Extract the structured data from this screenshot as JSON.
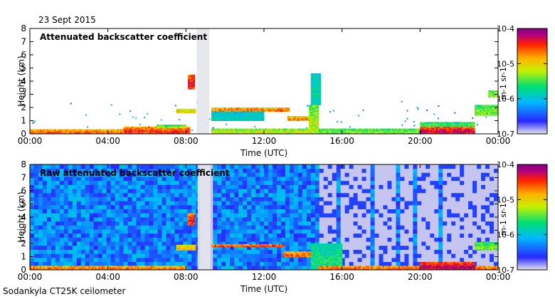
{
  "date_label": "23 Sept 2015",
  "footer_label": "Sodankyla CT25K ceilometer",
  "chart_data": [
    {
      "type": "heatmap",
      "title": "Attenuated backscatter coefficient",
      "xlabel": "Time (UTC)",
      "ylabel": "Height (km)",
      "xlim": [
        0,
        24
      ],
      "ylim": [
        0,
        8
      ],
      "xticks": [
        "00:00",
        "04:00",
        "08:00",
        "12:00",
        "16:00",
        "20:00",
        "00:00"
      ],
      "yticks": [
        "0",
        "1",
        "2",
        "3",
        "4",
        "5",
        "6",
        "7",
        "8"
      ],
      "colorbar": {
        "label": "m-1 sr-1",
        "ticks": [
          "10-7",
          "10-6",
          "10-5",
          "10-4"
        ],
        "range": [
          -7,
          -4
        ]
      },
      "background_noise": 0.03,
      "layers": [
        {
          "t0": 0.0,
          "t1": 4.8,
          "h0": 0.0,
          "h1": 0.35,
          "val": 0.8
        },
        {
          "t0": 4.8,
          "t1": 8.2,
          "h0": 0.0,
          "h1": 0.55,
          "val": 0.85
        },
        {
          "t0": 6.5,
          "t1": 8.0,
          "h0": 0.45,
          "h1": 0.7,
          "val": 0.55
        },
        {
          "t0": 7.5,
          "t1": 8.5,
          "h0": 1.6,
          "h1": 1.9,
          "val": 0.7
        },
        {
          "t0": 8.1,
          "t1": 8.45,
          "h0": 3.4,
          "h1": 4.5,
          "val": 0.9
        },
        {
          "t0": 9.3,
          "t1": 13.3,
          "h0": 1.7,
          "h1": 2.0,
          "val": 0.8
        },
        {
          "t0": 9.3,
          "t1": 12.0,
          "h0": 1.0,
          "h1": 1.7,
          "val": 0.38
        },
        {
          "t0": 13.2,
          "t1": 14.4,
          "h0": 1.0,
          "h1": 1.35,
          "val": 0.78
        },
        {
          "t0": 14.3,
          "t1": 14.8,
          "h0": 0.0,
          "h1": 2.2,
          "val": 0.6
        },
        {
          "t0": 14.4,
          "t1": 14.9,
          "h0": 2.2,
          "h1": 4.6,
          "val": 0.4
        },
        {
          "t0": 9.3,
          "t1": 14.4,
          "h0": 0.0,
          "h1": 0.4,
          "val": 0.62
        },
        {
          "t0": 14.8,
          "t1": 20.0,
          "h0": 0.0,
          "h1": 0.4,
          "val": 0.55
        },
        {
          "t0": 20.0,
          "t1": 22.8,
          "h0": 0.0,
          "h1": 0.55,
          "val": 0.92
        },
        {
          "t0": 20.0,
          "t1": 22.8,
          "h0": 0.55,
          "h1": 0.9,
          "val": 0.5
        },
        {
          "t0": 22.8,
          "t1": 24.0,
          "h0": 1.4,
          "h1": 2.2,
          "val": 0.55
        },
        {
          "t0": 23.5,
          "t1": 24.0,
          "h0": 2.8,
          "h1": 3.3,
          "val": 0.55
        }
      ],
      "gaps": [
        {
          "t0": 8.55,
          "t1": 9.2
        }
      ]
    },
    {
      "type": "heatmap",
      "title": "Raw attenuated backscatter coefficient",
      "xlabel": "Time (UTC)",
      "ylabel": "Height (km)",
      "xlim": [
        0,
        24
      ],
      "ylim": [
        0,
        8
      ],
      "xticks": [
        "00:00",
        "04:00",
        "08:00",
        "12:00",
        "16:00",
        "20:00",
        "00:00"
      ],
      "yticks": [
        "0",
        "1",
        "2",
        "3",
        "4",
        "5",
        "6",
        "7",
        "8"
      ],
      "colorbar": {
        "label": "m-1 sr-1",
        "ticks": [
          "10-7",
          "10-6",
          "10-5",
          "10-4"
        ],
        "range": [
          -7,
          -4
        ]
      },
      "background_noise": 0.75,
      "layers": [
        {
          "t0": 0.0,
          "t1": 8.0,
          "h0": 0.0,
          "h1": 0.3,
          "val": 0.8
        },
        {
          "t0": 8.1,
          "t1": 8.45,
          "h0": 3.4,
          "h1": 4.3,
          "val": 0.88
        },
        {
          "t0": 7.5,
          "t1": 8.5,
          "h0": 1.5,
          "h1": 1.9,
          "val": 0.7
        },
        {
          "t0": 9.3,
          "t1": 13.0,
          "h0": 1.75,
          "h1": 1.95,
          "val": 0.85
        },
        {
          "t0": 13.0,
          "t1": 14.4,
          "h0": 1.0,
          "h1": 1.4,
          "val": 0.8
        },
        {
          "t0": 14.4,
          "t1": 16.0,
          "h0": 0.0,
          "h1": 2.0,
          "val": 0.45
        },
        {
          "t0": 14.8,
          "t1": 24.0,
          "h0": 0.0,
          "h1": 0.3,
          "val": 0.82
        },
        {
          "t0": 20.0,
          "t1": 22.8,
          "h0": 0.0,
          "h1": 0.6,
          "val": 0.95
        },
        {
          "t0": 22.8,
          "t1": 24.0,
          "h0": 1.5,
          "h1": 2.1,
          "val": 0.55
        }
      ],
      "gaps": [
        {
          "t0": 8.6,
          "t1": 9.25
        }
      ],
      "quiet_after": 14.8
    }
  ]
}
